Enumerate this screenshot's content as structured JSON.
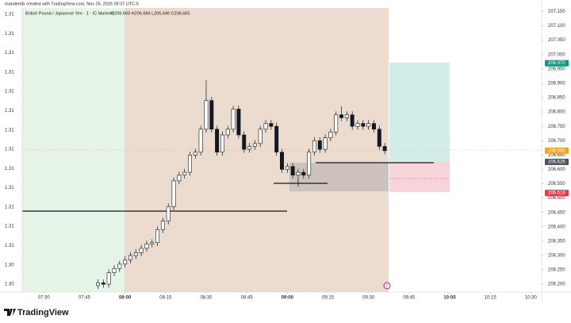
{
  "header": {
    "credit": "mandemfx created with TradingView.com, Nov 26, 2025 09:37 UTC-5",
    "symbol": "British Pound / Japanese Yen · 1 · IC Markets",
    "ohlc": "O206.669 H206.684 L206.646 C206.665"
  },
  "chart_data": {
    "type": "candlestick",
    "x": [
      "07:50",
      "07:52",
      "07:54",
      "07:56",
      "07:58",
      "08:00",
      "08:02",
      "08:04",
      "08:06",
      "08:08",
      "08:10",
      "08:12",
      "08:14",
      "08:16",
      "08:18",
      "08:20",
      "08:22",
      "08:24",
      "08:26",
      "08:28",
      "08:30",
      "08:32",
      "08:34",
      "08:36",
      "08:38",
      "08:40",
      "08:42",
      "08:44",
      "08:46",
      "08:48",
      "08:50",
      "08:52",
      "08:54",
      "08:56",
      "08:58",
      "09:00",
      "09:02",
      "09:04",
      "09:06",
      "09:08",
      "09:10",
      "09:12",
      "09:14",
      "09:16",
      "09:18",
      "09:20",
      "09:22",
      "09:24",
      "09:26",
      "09:28",
      "09:30",
      "09:32",
      "09:34",
      "09:36"
    ],
    "open": [
      206.195,
      206.205,
      206.2,
      206.24,
      206.255,
      206.27,
      206.285,
      206.3,
      206.31,
      206.325,
      206.34,
      206.345,
      206.39,
      206.42,
      206.47,
      206.56,
      206.58,
      206.59,
      206.65,
      206.66,
      206.74,
      206.84,
      206.74,
      206.66,
      206.72,
      206.74,
      206.81,
      206.72,
      206.67,
      206.68,
      206.69,
      206.74,
      206.76,
      206.75,
      206.66,
      206.6,
      206.61,
      206.58,
      206.59,
      206.58,
      206.66,
      206.7,
      206.67,
      206.71,
      206.73,
      206.79,
      206.78,
      206.79,
      206.75,
      206.76,
      206.75,
      206.76,
      206.74,
      206.68
    ],
    "high": [
      206.217,
      206.217,
      206.252,
      206.267,
      206.282,
      206.297,
      206.312,
      206.322,
      206.337,
      206.352,
      206.357,
      206.402,
      206.432,
      206.482,
      206.572,
      206.592,
      206.602,
      206.662,
      206.672,
      206.752,
      206.91,
      206.852,
      206.752,
      206.732,
      206.752,
      206.822,
      206.822,
      206.732,
      206.692,
      206.702,
      206.752,
      206.772,
      206.772,
      206.762,
      206.672,
      206.622,
      206.622,
      206.602,
      206.602,
      206.672,
      206.712,
      206.712,
      206.722,
      206.742,
      206.802,
      206.82,
      206.802,
      206.802,
      206.772,
      206.772,
      206.772,
      206.772,
      206.752,
      206.692
    ],
    "low": [
      206.183,
      206.188,
      206.188,
      206.228,
      206.243,
      206.258,
      206.273,
      206.288,
      206.298,
      206.313,
      206.328,
      206.333,
      206.378,
      206.408,
      206.458,
      206.548,
      206.568,
      206.578,
      206.638,
      206.648,
      206.728,
      206.728,
      206.648,
      206.648,
      206.708,
      206.728,
      206.708,
      206.658,
      206.658,
      206.668,
      206.678,
      206.728,
      206.738,
      206.648,
      206.588,
      206.588,
      206.568,
      206.54,
      206.568,
      206.568,
      206.648,
      206.658,
      206.658,
      206.698,
      206.718,
      206.768,
      206.768,
      206.738,
      206.738,
      206.738,
      206.738,
      206.728,
      206.668,
      206.653
    ],
    "close": [
      206.205,
      206.2,
      206.24,
      206.255,
      206.27,
      206.285,
      206.3,
      206.31,
      206.325,
      206.34,
      206.345,
      206.39,
      206.42,
      206.47,
      206.56,
      206.58,
      206.59,
      206.65,
      206.66,
      206.74,
      206.84,
      206.74,
      206.66,
      206.72,
      206.74,
      206.81,
      206.72,
      206.67,
      206.68,
      206.69,
      206.74,
      206.76,
      206.75,
      206.66,
      206.6,
      206.61,
      206.58,
      206.59,
      206.58,
      206.66,
      206.7,
      206.67,
      206.71,
      206.73,
      206.79,
      206.78,
      206.79,
      206.75,
      206.76,
      206.75,
      206.76,
      206.74,
      206.68,
      206.665
    ],
    "up_color": "#ffffff",
    "down_color": "#131722",
    "xlim": [
      "07:22",
      "10:34"
    ],
    "xticks": [
      "07:30",
      "07:45",
      "08:00",
      "08:15",
      "08:30",
      "08:45",
      "09:00",
      "09:15",
      "09:30",
      "09:45",
      "10:00",
      "10:15",
      "10:30"
    ],
    "ylim": [
      206.17,
      207.19
    ],
    "yticks": [
      {
        "value": 206.2,
        "label": "206.200"
      },
      {
        "value": 206.25,
        "label": "206.250"
      },
      {
        "value": 206.3,
        "label": "206.300"
      },
      {
        "value": 206.35,
        "label": "206.350"
      },
      {
        "value": 206.4,
        "label": "206.400"
      },
      {
        "value": 206.45,
        "label": "206.450"
      },
      {
        "value": 206.5,
        "label": "206.500"
      },
      {
        "value": 206.55,
        "label": "206.550"
      },
      {
        "value": 206.6,
        "label": "206.600"
      },
      {
        "value": 206.65,
        "label": "206.650"
      },
      {
        "value": 206.7,
        "label": "206.700"
      },
      {
        "value": 206.75,
        "label": "206.750"
      },
      {
        "value": 206.8,
        "label": "206.800"
      },
      {
        "value": 206.85,
        "label": "206.850"
      },
      {
        "value": 206.9,
        "label": "206.900"
      },
      {
        "value": 206.95,
        "label": "206.950"
      },
      {
        "value": 207,
        "label": "207.000"
      },
      {
        "value": 207.05,
        "label": "207.050"
      },
      {
        "value": 207.1,
        "label": "207.100"
      },
      {
        "value": 207.15,
        "label": "207.150"
      }
    ],
    "grid": false,
    "price_labels": [
      {
        "value": 206.97,
        "label": "206.970",
        "color": "#089981"
      },
      {
        "value": 206.665,
        "label": "206.665",
        "color": "#f7a21b"
      },
      {
        "value": 206.626,
        "label": "206.626",
        "color": "#50535e"
      },
      {
        "value": 206.518,
        "label": "206.518",
        "color": "#f23645"
      }
    ],
    "left_axis_labels": [
      "1.31",
      "1.31",
      "1.31",
      "1.31",
      "1.31",
      "1.31",
      "1.31",
      "1.31",
      "1.31",
      "1.31",
      "1.31",
      "1.31",
      "1.31",
      "1.30",
      "1.30"
    ]
  },
  "footer": {
    "brand": "TradingView"
  }
}
